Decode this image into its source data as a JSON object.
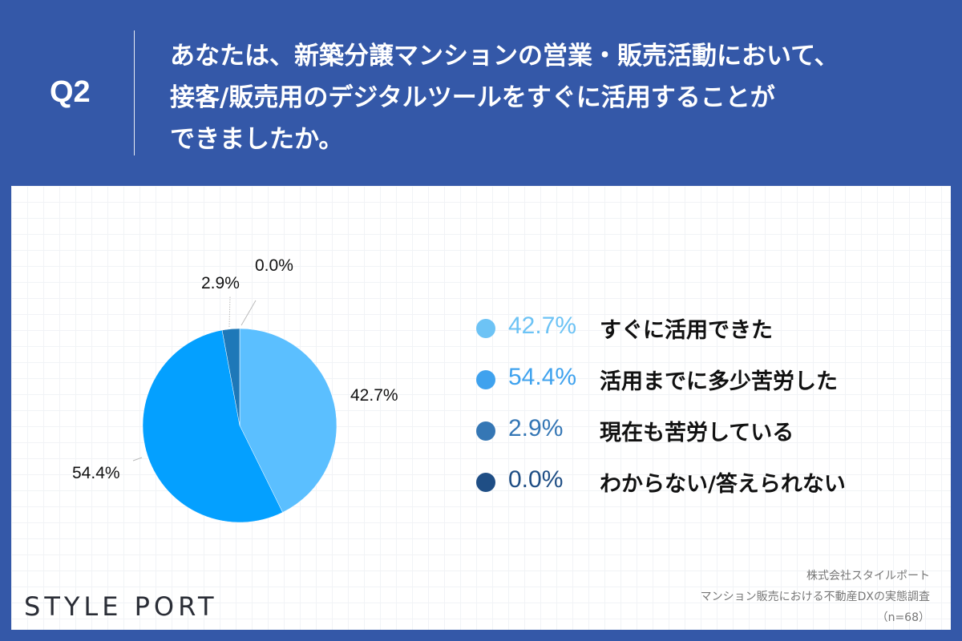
{
  "header": {
    "question_number": "Q2",
    "question_lines": [
      "あなたは、新築分譲マンションの営業・販売活動において、",
      "接客/販売用のデジタルツールをすぐに活用することが",
      "できましたか。"
    ]
  },
  "chart_data": {
    "type": "pie",
    "title": "あなたは、新築分譲マンションの営業・販売活動において、接客/販売用のデジタルツールをすぐに活用することができましたか。",
    "categories": [
      "すぐに活用できた",
      "活用までに多少苦労した",
      "現在も苦労している",
      "わからない/答えられない"
    ],
    "values": [
      42.7,
      54.4,
      2.9,
      0.0
    ],
    "unit": "%",
    "colors": [
      "#5BBFFF",
      "#04A0FF",
      "#1E78B8",
      "#1F4E85"
    ],
    "slice_labels": [
      "42.7%",
      "54.4%",
      "2.9%",
      "0.0%"
    ],
    "start_angle": "12 o'clock, clockwise",
    "legend_position": "right",
    "sample_size": "n=68"
  },
  "legend": {
    "items": [
      {
        "pct": "42.7%",
        "label": "すぐに活用できた",
        "dot_color": "#6DC3F5",
        "pct_color": "#6DC3F5"
      },
      {
        "pct": "54.4%",
        "label": "活用までに多少苦労した",
        "dot_color": "#3FA2EE",
        "pct_color": "#3FA2EE"
      },
      {
        "pct": "2.9%",
        "label": "現在も苦労している",
        "dot_color": "#3577B5",
        "pct_color": "#3577B5"
      },
      {
        "pct": "0.0%",
        "label": "わからない/答えられない",
        "dot_color": "#1F4E85",
        "pct_color": "#1F4E85"
      }
    ]
  },
  "footer": {
    "logo": "STYLE PORT",
    "source_lines": [
      "株式会社スタイルポート",
      "マンション販売における不動産DXの実態調査",
      "（n=68）"
    ]
  }
}
